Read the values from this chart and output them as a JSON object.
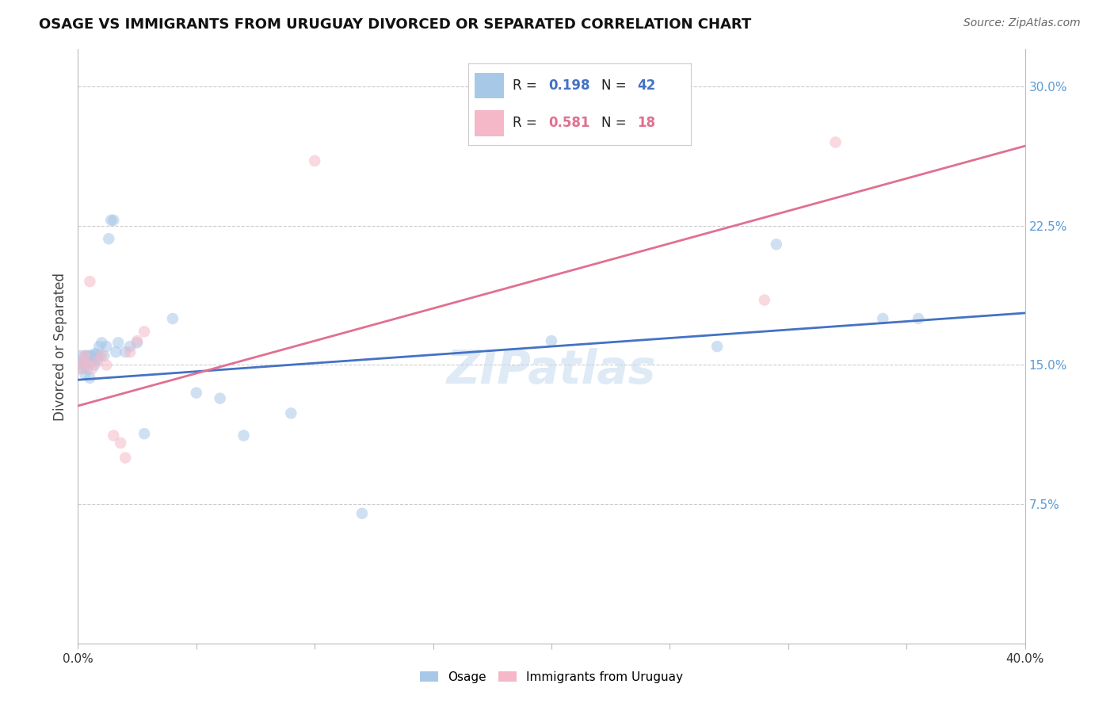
{
  "title": "OSAGE VS IMMIGRANTS FROM URUGUAY DIVORCED OR SEPARATED CORRELATION CHART",
  "source": "Source: ZipAtlas.com",
  "ylabel": "Divorced or Separated",
  "xlim": [
    0.0,
    0.4
  ],
  "ylim": [
    0.0,
    0.32
  ],
  "osage_x": [
    0.001,
    0.001,
    0.002,
    0.002,
    0.003,
    0.003,
    0.003,
    0.004,
    0.004,
    0.005,
    0.005,
    0.006,
    0.006,
    0.007,
    0.007,
    0.008,
    0.008,
    0.009,
    0.009,
    0.01,
    0.011,
    0.012,
    0.013,
    0.014,
    0.015,
    0.016,
    0.017,
    0.02,
    0.022,
    0.025,
    0.028,
    0.04,
    0.05,
    0.06,
    0.07,
    0.09,
    0.12,
    0.2,
    0.27,
    0.295,
    0.34,
    0.355
  ],
  "osage_y": [
    0.15,
    0.155,
    0.148,
    0.152,
    0.145,
    0.15,
    0.155,
    0.148,
    0.155,
    0.143,
    0.155,
    0.155,
    0.152,
    0.15,
    0.156,
    0.153,
    0.156,
    0.16,
    0.155,
    0.162,
    0.155,
    0.16,
    0.218,
    0.228,
    0.228,
    0.157,
    0.162,
    0.157,
    0.16,
    0.162,
    0.113,
    0.175,
    0.135,
    0.132,
    0.112,
    0.124,
    0.07,
    0.163,
    0.16,
    0.215,
    0.175,
    0.175
  ],
  "uruguay_x": [
    0.001,
    0.002,
    0.003,
    0.004,
    0.005,
    0.006,
    0.008,
    0.01,
    0.012,
    0.015,
    0.018,
    0.02,
    0.022,
    0.025,
    0.028,
    0.1,
    0.29,
    0.32
  ],
  "uruguay_y": [
    0.148,
    0.152,
    0.155,
    0.15,
    0.195,
    0.148,
    0.152,
    0.155,
    0.15,
    0.112,
    0.108,
    0.1,
    0.157,
    0.163,
    0.168,
    0.26,
    0.185,
    0.27
  ],
  "blue_line_x": [
    0.0,
    0.4
  ],
  "blue_line_y": [
    0.142,
    0.178
  ],
  "pink_line_x": [
    0.0,
    0.4
  ],
  "pink_line_y": [
    0.128,
    0.268
  ],
  "watermark": "ZIPatlas",
  "dot_size": 110,
  "dot_alpha": 0.55,
  "blue_color": "#a8c8e8",
  "pink_color": "#f5b8c8",
  "blue_line_color": "#4472c4",
  "pink_line_color": "#e07090",
  "grid_color": "#cccccc",
  "background_color": "#ffffff",
  "legend_R1": "0.198",
  "legend_N1": "42",
  "legend_R2": "0.581",
  "legend_N2": "18",
  "legend_color1": "#4472c4",
  "legend_color2": "#e07090",
  "legend_box1": "#a8c8e8",
  "legend_box2": "#f5b8c8"
}
